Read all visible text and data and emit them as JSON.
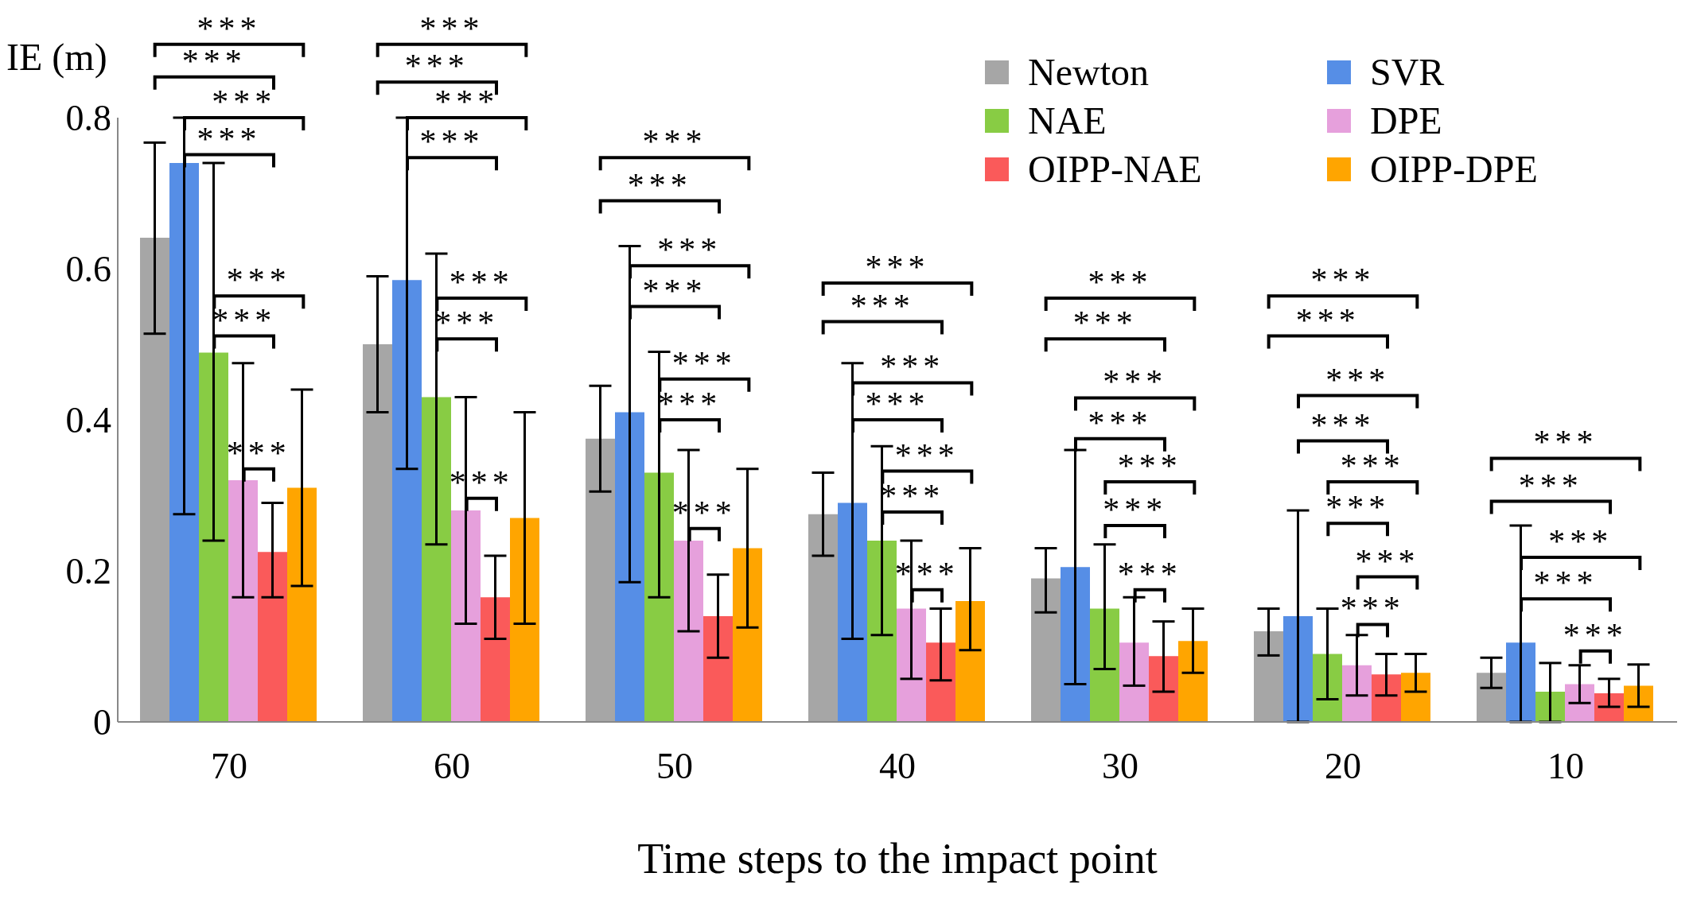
{
  "chart_data": {
    "type": "bar",
    "xlabel": "Time steps to the impact point",
    "ylabel": "IE (m)",
    "categories": [
      "70",
      "60",
      "50",
      "40",
      "30",
      "20",
      "10"
    ],
    "ylim": [
      0,
      0.8
    ],
    "yticks": [
      0,
      0.2,
      0.4,
      0.6,
      0.8
    ],
    "grid": false,
    "legend": "top right",
    "series": [
      {
        "name": "Newton",
        "color": "#a6a6a6",
        "values": [
          0.641,
          0.5,
          0.375,
          0.275,
          0.19,
          0.12,
          0.065
        ],
        "errors": [
          [
            0.514,
            0.767
          ],
          [
            0.41,
            0.59
          ],
          [
            0.305,
            0.445
          ],
          [
            0.22,
            0.33
          ],
          [
            0.145,
            0.23
          ],
          [
            0.088,
            0.15
          ],
          [
            0.045,
            0.085
          ]
        ]
      },
      {
        "name": "SVR",
        "color": "#568ee6",
        "values": [
          0.74,
          0.585,
          0.41,
          0.29,
          0.205,
          0.14,
          0.105
        ],
        "errors": [
          [
            0.275,
            0.8
          ],
          [
            0.335,
            0.8
          ],
          [
            0.185,
            0.63
          ],
          [
            0.11,
            0.475
          ],
          [
            0.05,
            0.36
          ],
          [
            0,
            0.28
          ],
          [
            0,
            0.26
          ]
        ]
      },
      {
        "name": "NAE",
        "color": "#88cc44",
        "values": [
          0.489,
          0.43,
          0.33,
          0.24,
          0.15,
          0.09,
          0.04
        ],
        "errors": [
          [
            0.24,
            0.74
          ],
          [
            0.235,
            0.62
          ],
          [
            0.165,
            0.49
          ],
          [
            0.115,
            0.365
          ],
          [
            0.07,
            0.235
          ],
          [
            0.03,
            0.15
          ],
          [
            0,
            0.078
          ]
        ]
      },
      {
        "name": "DPE",
        "color": "#e6a0dc",
        "values": [
          0.32,
          0.28,
          0.24,
          0.15,
          0.105,
          0.075,
          0.05
        ],
        "errors": [
          [
            0.165,
            0.475
          ],
          [
            0.13,
            0.43
          ],
          [
            0.12,
            0.36
          ],
          [
            0.057,
            0.24
          ],
          [
            0.048,
            0.165
          ],
          [
            0.035,
            0.115
          ],
          [
            0.025,
            0.075
          ]
        ]
      },
      {
        "name": "OIPP-NAE",
        "color": "#fa5a5a",
        "values": [
          0.225,
          0.165,
          0.14,
          0.105,
          0.087,
          0.063,
          0.038
        ],
        "errors": [
          [
            0.165,
            0.29
          ],
          [
            0.11,
            0.22
          ],
          [
            0.085,
            0.195
          ],
          [
            0.055,
            0.15
          ],
          [
            0.04,
            0.133
          ],
          [
            0.035,
            0.09
          ],
          [
            0.02,
            0.057
          ]
        ]
      },
      {
        "name": "OIPP-DPE",
        "color": "#ffa500",
        "values": [
          0.31,
          0.27,
          0.23,
          0.16,
          0.107,
          0.065,
          0.048
        ],
        "errors": [
          [
            0.18,
            0.44
          ],
          [
            0.13,
            0.41
          ],
          [
            0.125,
            0.335
          ],
          [
            0.095,
            0.23
          ],
          [
            0.065,
            0.15
          ],
          [
            0.04,
            0.09
          ],
          [
            0.02,
            0.076
          ]
        ]
      }
    ],
    "annotations": [
      "***",
      "***",
      "***",
      "***",
      "***",
      "***",
      "***",
      "***",
      "***",
      "***",
      "***",
      "***",
      "***",
      "***",
      "***",
      "***",
      "***",
      "***",
      "***",
      "***",
      "***",
      "***",
      "***",
      "***",
      "***",
      "***",
      "***",
      "***",
      "***",
      "***",
      "***",
      "***",
      "***",
      "***",
      "***",
      "***",
      "***",
      "***",
      "***",
      "***",
      "***",
      "***",
      "***",
      "***",
      "***",
      "***",
      "***",
      "***"
    ]
  }
}
